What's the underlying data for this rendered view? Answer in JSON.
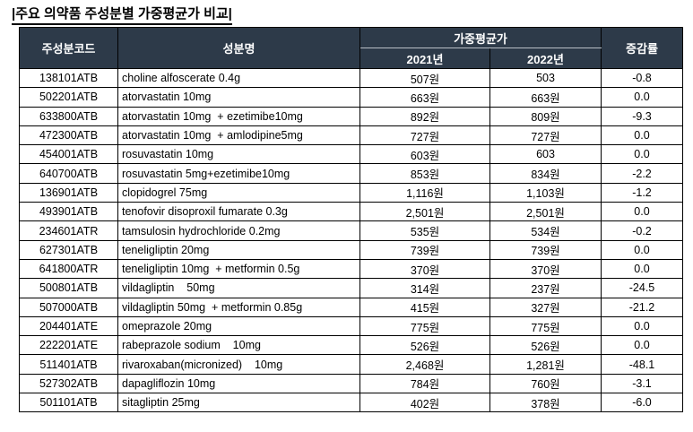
{
  "title": "|주요 의약품 주성분별 가중평균가 비교|",
  "colors": {
    "header_bg": "#2d3a49",
    "header_text": "#ffffff",
    "border": "#000000"
  },
  "table": {
    "headers": {
      "code": "주성분코드",
      "name": "성분명",
      "price_group": "가중평균가",
      "year_2021": "2021년",
      "year_2022": "2022년",
      "change": "증감률"
    },
    "rows": [
      {
        "code": "138101ATB",
        "name": "choline alfoscerate 0.4g",
        "y2021": "507원",
        "y2022": "503",
        "change": "-0.8"
      },
      {
        "code": "502201ATB",
        "name": "atorvastatin 10mg",
        "y2021": "663원",
        "y2022": "663원",
        "change": "0.0"
      },
      {
        "code": "633800ATB",
        "name": "atorvastatin 10mg  + ezetimibe10mg",
        "y2021": "892원",
        "y2022": "809원",
        "change": "-9.3"
      },
      {
        "code": "472300ATB",
        "name": "atorvastatin 10mg  + amlodipine5mg",
        "y2021": "727원",
        "y2022": "727원",
        "change": "0.0"
      },
      {
        "code": "454001ATB",
        "name": "rosuvastatin 10mg",
        "y2021": "603원",
        "y2022": "603",
        "change": "0.0"
      },
      {
        "code": "640700ATB",
        "name": "rosuvastatin 5mg+ezetimibe10mg",
        "y2021": "853원",
        "y2022": "834원",
        "change": "-2.2"
      },
      {
        "code": "136901ATB",
        "name": "clopidogrel 75mg",
        "y2021": "1,116원",
        "y2022": "1,103원",
        "change": "-1.2"
      },
      {
        "code": "493901ATB",
        "name": "tenofovir disoproxil fumarate 0.3g",
        "y2021": "2,501원",
        "y2022": "2,501원",
        "change": "0.0"
      },
      {
        "code": "234601ATR",
        "name": "tamsulosin hydrochloride 0.2mg",
        "y2021": "535원",
        "y2022": "534원",
        "change": "-0.2"
      },
      {
        "code": "627301ATB",
        "name": "teneligliptin 20mg",
        "y2021": "739원",
        "y2022": "739원",
        "change": "0.0"
      },
      {
        "code": "641800ATR",
        "name": "teneligliptin 10mg  + metformin 0.5g",
        "y2021": "370원",
        "y2022": "370원",
        "change": "0.0"
      },
      {
        "code": "500801ATB",
        "name": "vildagliptin    50mg",
        "y2021": "314원",
        "y2022": "237원",
        "change": "-24.5"
      },
      {
        "code": "507000ATB",
        "name": "vildagliptin 50mg  + metformin 0.85g",
        "y2021": "415원",
        "y2022": "327원",
        "change": "-21.2"
      },
      {
        "code": "204401ATE",
        "name": "omeprazole 20mg",
        "y2021": "775원",
        "y2022": "775원",
        "change": "0.0"
      },
      {
        "code": "222201ATE",
        "name": "rabeprazole sodium    10mg",
        "y2021": "526원",
        "y2022": "526원",
        "change": "0.0"
      },
      {
        "code": "511401ATB",
        "name": "rivaroxaban(micronized)    10mg",
        "y2021": "2,468원",
        "y2022": "1,281원",
        "change": "-48.1"
      },
      {
        "code": "527302ATB",
        "name": "dapagliflozin 10mg",
        "y2021": "784원",
        "y2022": "760원",
        "change": "-3.1"
      },
      {
        "code": "501101ATB",
        "name": "sitagliptin 25mg",
        "y2021": "402원",
        "y2022": "378원",
        "change": "-6.0"
      }
    ]
  }
}
